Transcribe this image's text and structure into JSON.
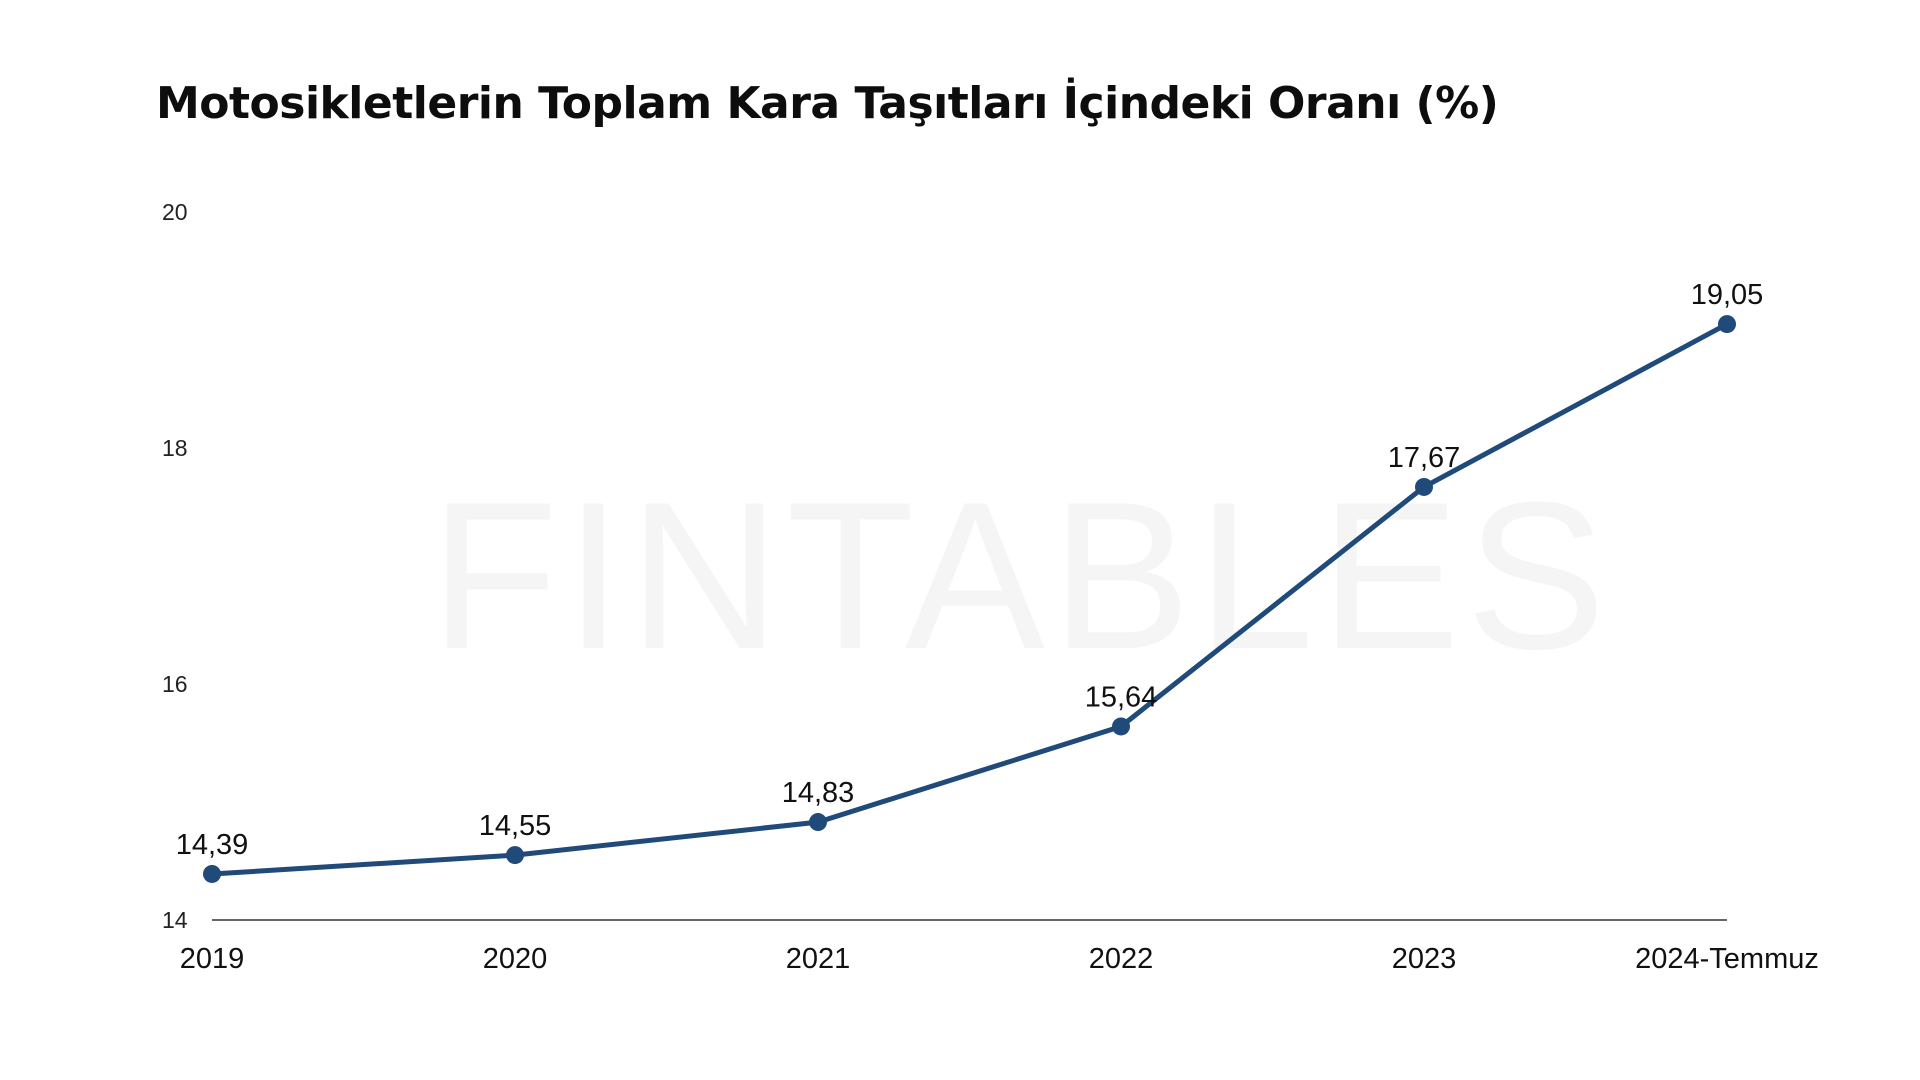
{
  "title": "Motosikletlerin Toplam Kara Taşıtları İçindeki Oranı (%)",
  "watermark": "FINTABLES",
  "colors": {
    "line": "#1f4a7a",
    "axis": "#333333",
    "background": "#ffffff"
  },
  "chart_data": {
    "type": "line",
    "title": "Motosikletlerin Toplam Kara Taşıtları İçindeki Oranı (%)",
    "categories": [
      "2019",
      "2020",
      "2021",
      "2022",
      "2023",
      "2024-Temmuz"
    ],
    "series": [
      {
        "values": [
          14.39,
          14.55,
          14.83,
          15.64,
          17.67,
          19.05
        ]
      }
    ],
    "data_labels": [
      "14,39",
      "14,55",
      "14,83",
      "15,64",
      "17,67",
      "19,05"
    ],
    "y_ticks": [
      "14",
      "16",
      "18",
      "20"
    ],
    "ylim": [
      14,
      20
    ],
    "xlabel": "",
    "ylabel": "",
    "grid": false,
    "legend": "none"
  }
}
